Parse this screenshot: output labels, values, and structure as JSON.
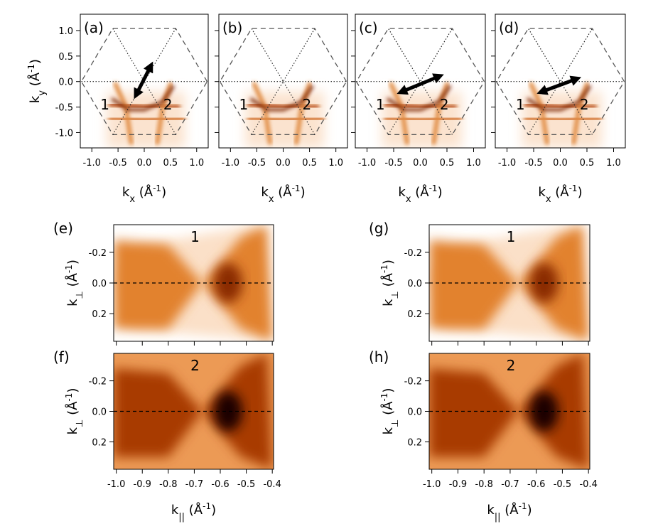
{
  "chart_data": [
    {
      "type": "heatmap",
      "panel_label": "(a)",
      "xlim": [
        -1.22,
        1.22
      ],
      "ylim": [
        -1.3,
        1.32
      ],
      "xticks": [
        {
          "value": -1,
          "label": "-1.0"
        },
        -0.5,
        {
          "value": 0,
          "label": "0.0"
        },
        0.5,
        {
          "value": 1,
          "label": "1.0"
        }
      ],
      "yticks": [
        {
          "value": 1,
          "label": "1.0"
        },
        0.5,
        {
          "value": 0,
          "label": "0.0"
        },
        -0.5,
        {
          "value": -1,
          "label": "-1.0"
        }
      ],
      "xtick_labels": true,
      "ytick_labels": true,
      "xlabel": [
        "k",
        "x",
        " (Å",
        "-1",
        ")"
      ],
      "ylabel": [
        "k",
        "y",
        " (Å",
        "-1",
        ")"
      ],
      "annotations": [
        "1",
        "2"
      ]
    },
    {
      "type": "heatmap",
      "panel_label": "(b)",
      "xlim": [
        -1.22,
        1.22
      ],
      "ylim": [
        -1.3,
        1.32
      ],
      "xticks": [
        {
          "value": -1,
          "label": "-1.0"
        },
        -0.5,
        {
          "value": 0,
          "label": "0.0"
        },
        0.5,
        {
          "value": 1,
          "label": "1.0"
        }
      ],
      "yticks": [
        1,
        0.5,
        0,
        -0.5,
        -1
      ],
      "xtick_labels": true,
      "ytick_labels": false,
      "xlabel": [
        "k",
        "x",
        " (Å",
        "-1",
        ")"
      ],
      "annotations": [
        "1",
        "2"
      ]
    },
    {
      "type": "heatmap",
      "panel_label": "(c)",
      "xlim": [
        -1.22,
        1.22
      ],
      "ylim": [
        -1.3,
        1.32
      ],
      "xticks": [
        {
          "value": -1,
          "label": "-1.0"
        },
        -0.5,
        {
          "value": 0,
          "label": "0.0"
        },
        0.5,
        {
          "value": 1,
          "label": "1.0"
        }
      ],
      "yticks": [
        1,
        0.5,
        0,
        -0.5,
        -1
      ],
      "xtick_labels": true,
      "ytick_labels": false,
      "xlabel": [
        "k",
        "x",
        " (Å",
        "-1",
        ")"
      ],
      "annotations": [
        "1",
        "2"
      ]
    },
    {
      "type": "heatmap",
      "panel_label": "(d)",
      "xlim": [
        -1.22,
        1.22
      ],
      "ylim": [
        -1.3,
        1.32
      ],
      "xticks": [
        {
          "value": -1,
          "label": "-1.0"
        },
        -0.5,
        {
          "value": 0,
          "label": "0.0"
        },
        0.5,
        {
          "value": 1,
          "label": "1.0"
        }
      ],
      "yticks": [
        1,
        0.5,
        0,
        -0.5,
        -1
      ],
      "xtick_labels": true,
      "ytick_labels": false,
      "xlabel": [
        "k",
        "x",
        " (Å",
        "-1",
        ")"
      ],
      "annotations": [
        "1",
        "2"
      ]
    },
    {
      "type": "heatmap",
      "panel_label": "(e)",
      "xlim": [
        -1.01,
        -0.395
      ],
      "ylim": [
        0.38,
        -0.38
      ],
      "xticks": [
        -1,
        -0.9,
        -0.8,
        -0.7,
        -0.6,
        -0.5,
        -0.4
      ],
      "yticks": [
        -0.2,
        {
          "value": 0,
          "label": "0.0"
        },
        0.2
      ],
      "xtick_labels": false,
      "ytick_labels": true,
      "ylabel": [
        "k",
        "⊥",
        " (Å",
        "-1",
        ")"
      ],
      "annotations": [
        "1"
      ]
    },
    {
      "type": "heatmap",
      "panel_label": "(f)",
      "xlim": [
        -1.01,
        -0.395
      ],
      "ylim": [
        0.38,
        -0.38
      ],
      "xticks": [
        {
          "value": -1,
          "label": "-1.0"
        },
        -0.9,
        -0.8,
        -0.7,
        -0.6,
        -0.5,
        -0.4
      ],
      "yticks": [
        -0.2,
        {
          "value": 0,
          "label": "0.0"
        },
        0.2
      ],
      "xtick_labels": true,
      "ytick_labels": true,
      "xlabel": [
        "k",
        "||",
        " (Å",
        "-1",
        ")"
      ],
      "ylabel": [
        "k",
        "⊥",
        " (Å",
        "-1",
        ")"
      ],
      "annotations": [
        "2"
      ]
    },
    {
      "type": "heatmap",
      "panel_label": "(g)",
      "xlim": [
        -1.01,
        -0.395
      ],
      "ylim": [
        0.38,
        -0.38
      ],
      "xticks": [
        -1,
        -0.9,
        -0.8,
        -0.7,
        -0.6,
        -0.5,
        -0.4
      ],
      "yticks": [
        -0.2,
        {
          "value": 0,
          "label": "0.0"
        },
        0.2
      ],
      "xtick_labels": false,
      "ytick_labels": true,
      "ylabel": [
        "k",
        "⊥",
        " (Å",
        "-1",
        ")"
      ],
      "annotations": [
        "1"
      ]
    },
    {
      "type": "heatmap",
      "panel_label": "(h)",
      "xlim": [
        -1.01,
        -0.395
      ],
      "ylim": [
        0.38,
        -0.38
      ],
      "xticks": [
        {
          "value": -1,
          "label": "-1.0"
        },
        -0.9,
        -0.8,
        -0.7,
        -0.6,
        -0.5,
        -0.4
      ],
      "yticks": [
        -0.2,
        {
          "value": 0,
          "label": "0.0"
        },
        0.2
      ],
      "xtick_labels": true,
      "ytick_labels": true,
      "xlabel": [
        "k",
        "||",
        " (Å",
        "-1",
        ")"
      ],
      "ylabel": [
        "k",
        "⊥",
        " (Å",
        "-1",
        ")"
      ],
      "annotations": [
        "2"
      ]
    }
  ]
}
